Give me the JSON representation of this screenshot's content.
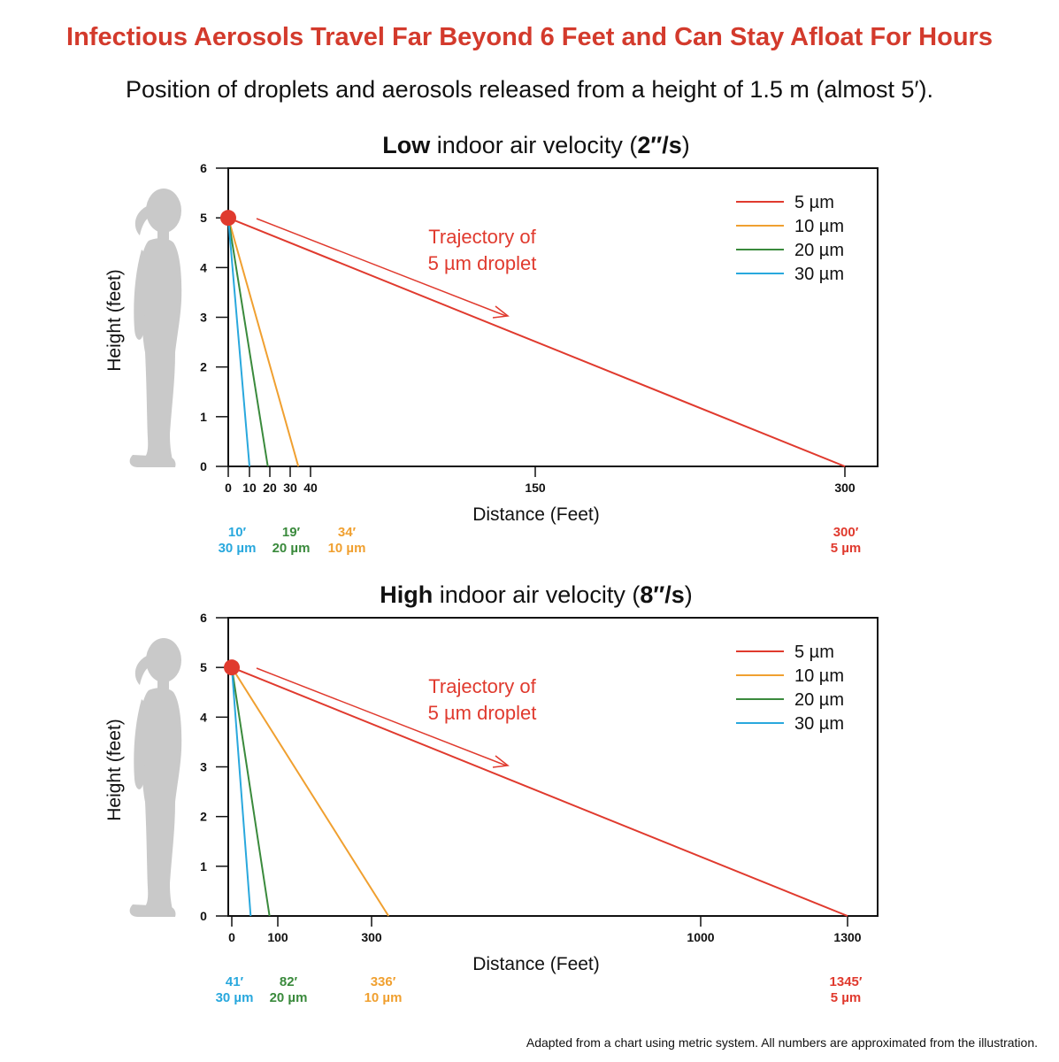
{
  "title": "Infectious Aerosols Travel Far Beyond 6 Feet and Can Stay Afloat For Hours",
  "subtitle": "Position of droplets and aerosols released from a height of 1.5 m (almost 5′).",
  "footnote": "Adapted from a chart using metric system. All numbers are approximated from the illustration.",
  "colors": {
    "title": "#d33a2c",
    "5um": "#e03a2e",
    "10um": "#f0a030",
    "20um": "#3a8a3c",
    "30um": "#29a8dd",
    "silhouette": "#c9c9c9"
  },
  "chart_data": [
    {
      "type": "line",
      "title_bold": "Low",
      "title_rest": " indoor air velocity (",
      "title_speed": "2″/s",
      "title_end": ")",
      "xlabel": "Distance (Feet)",
      "ylabel": "Height (feet)",
      "ylim": [
        0,
        6
      ],
      "xlim": [
        0,
        300
      ],
      "y_ticks": [
        "0",
        "1",
        "2",
        "3",
        "4",
        "5",
        "6"
      ],
      "x_ticks": [
        {
          "value": 0,
          "label": "0"
        },
        {
          "value": 10,
          "label": "10"
        },
        {
          "value": 20,
          "label": "20"
        },
        {
          "value": 30,
          "label": "30"
        },
        {
          "value": 40,
          "label": "40"
        },
        {
          "value": 150,
          "label": "150"
        },
        {
          "value": 300,
          "label": "300"
        }
      ],
      "release_point": {
        "x": 0,
        "y": 5
      },
      "series": [
        {
          "name": "5 µm",
          "color": "#e03a2e",
          "x": [
            0,
            300
          ],
          "y": [
            5,
            0
          ],
          "landing_label": "300′"
        },
        {
          "name": "10 µm",
          "color": "#f0a030",
          "x": [
            0,
            34
          ],
          "y": [
            5,
            0
          ],
          "landing_label": "34′"
        },
        {
          "name": "20 µm",
          "color": "#3a8a3c",
          "x": [
            0,
            19
          ],
          "y": [
            5,
            0
          ],
          "landing_label": "19′"
        },
        {
          "name": "30 µm",
          "color": "#29a8dd",
          "x": [
            0,
            10
          ],
          "y": [
            5,
            0
          ],
          "landing_label": "10′"
        }
      ],
      "annotation": [
        "Trajectory of",
        "5 µm droplet"
      ],
      "legend_position": "top-right"
    },
    {
      "type": "line",
      "title_bold": "High",
      "title_rest": " indoor air velocity (",
      "title_speed": "8″/s",
      "title_end": ")",
      "xlabel": "Distance (Feet)",
      "ylabel": "Height (feet)",
      "ylim": [
        0,
        6
      ],
      "xlim": [
        0,
        1300
      ],
      "y_ticks": [
        "0",
        "1",
        "2",
        "3",
        "4",
        "5",
        "6"
      ],
      "x_ticks": [
        {
          "value": 0,
          "label": "0"
        },
        {
          "value": 100,
          "label": "100"
        },
        {
          "value": 300,
          "label": "300"
        },
        {
          "value": 1000,
          "label": "1000"
        },
        {
          "value": 1300,
          "label": "1300"
        }
      ],
      "release_point": {
        "x": 0,
        "y": 5
      },
      "series": [
        {
          "name": "5 µm",
          "color": "#e03a2e",
          "x": [
            0,
            1345
          ],
          "y": [
            5,
            0
          ],
          "landing_label": "1345′"
        },
        {
          "name": "10 µm",
          "color": "#f0a030",
          "x": [
            0,
            336
          ],
          "y": [
            5,
            0
          ],
          "landing_label": "336′"
        },
        {
          "name": "20 µm",
          "color": "#3a8a3c",
          "x": [
            0,
            82
          ],
          "y": [
            5,
            0
          ],
          "landing_label": "82′"
        },
        {
          "name": "30 µm",
          "color": "#29a8dd",
          "x": [
            0,
            41
          ],
          "y": [
            5,
            0
          ],
          "landing_label": "41′"
        }
      ],
      "annotation": [
        "Trajectory of",
        "5 µm droplet"
      ],
      "legend_position": "top-right"
    }
  ]
}
